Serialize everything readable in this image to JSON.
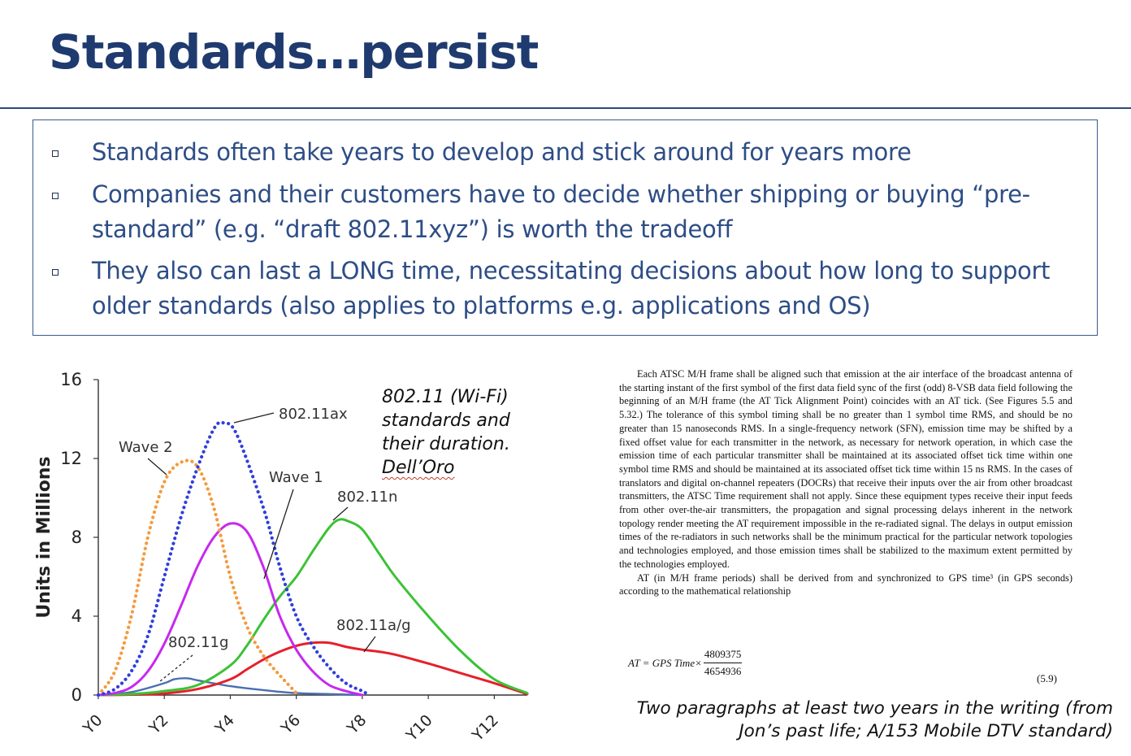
{
  "slide": {
    "title": "Standards…persist",
    "bullets": [
      "Standards often take years to develop and stick around for years more",
      "Companies and their customers have to decide whether shipping or buying “pre-standard” (e.g. “draft 802.11xyz”) is worth the tradeoff",
      "They also can last a LONG time, necessitating decisions about how long to support older standards (also applies to platforms e.g. applications and OS)"
    ],
    "colors": {
      "title": "#1f3a6e",
      "bullet_text": "#2d4d86",
      "box_border": "#3b5a8c"
    }
  },
  "caption": {
    "lines": [
      "802.11 (Wi-Fi)",
      "standards and",
      "their duration."
    ],
    "source": "Dell’Oro"
  },
  "document_excerpt": {
    "paragraphs": [
      "Each ATSC M/H frame shall be aligned such that emission at the air interface of the broadcast antenna of the starting instant of the first symbol of the first data field sync of the first (odd) 8-VSB data field following the beginning of an M/H frame (the AT Tick Alignment Point) coincides with an AT tick. (See Figures 5.5 and 5.32.) The tolerance of this symbol timing shall be no greater than 1 symbol time RMS, and should be no greater than 15 nanoseconds RMS. In a single-frequency network (SFN), emission time may be shifted by a fixed offset value for each transmitter in the network, as necessary for network operation, in which case the emission time of each particular transmitter shall be maintained at its associated offset tick time within one symbol time RMS and should be maintained at its associated offset tick time within 15 ns RMS. In the cases of translators and digital on-channel repeaters (DOCRs) that receive their inputs over the air from other broadcast transmitters, the ATSC Time requirement shall not apply. Since these equipment types receive their input feeds from other over-the-air transmitters, the propagation and signal processing delays inherent in the network topology render meeting the AT requirement impossible in the re-radiated signal. The delays in output emission times of the re-radiators in such networks shall be the minimum practical for the particular network topologies and technologies employed, and those emission times shall be stabilized to the maximum extent permitted by the technologies employed.",
      "AT (in M/H frame periods) shall be derived from and synchronized to GPS time³ (in GPS seconds) according to the mathematical relationship"
    ],
    "formula": {
      "lhs": "AT = GPS Time×",
      "numerator": "4809375",
      "denominator": "4654936"
    },
    "equation_number": "(5.9)"
  },
  "note": {
    "lines": [
      "Two paragraphs at least  two years in the writing (from",
      "Jon’s past life; A/153 Mobile DTV standard)"
    ]
  },
  "chart_data": {
    "type": "line",
    "title": "",
    "xlabel": "",
    "ylabel": "Units in Millions",
    "x_ticks": [
      "Y0",
      "Y2",
      "Y4",
      "Y6",
      "Y8",
      "Y10",
      "Y12"
    ],
    "x_tick_values": [
      0,
      2,
      4,
      6,
      8,
      10,
      12
    ],
    "y_ticks": [
      0,
      4,
      8,
      12,
      16
    ],
    "xlim": [
      0,
      13
    ],
    "ylim": [
      0,
      16
    ],
    "grid": false,
    "series": [
      {
        "name": "Wave 2",
        "color": "#f59a3c",
        "dash": "dotted",
        "points": [
          [
            0,
            0
          ],
          [
            0.5,
            1.2
          ],
          [
            1,
            4
          ],
          [
            1.5,
            8
          ],
          [
            2,
            10.8
          ],
          [
            2.5,
            11.8
          ],
          [
            3,
            11.6
          ],
          [
            3.5,
            9.5
          ],
          [
            4,
            6
          ],
          [
            4.5,
            3.5
          ],
          [
            5,
            2
          ],
          [
            5.5,
            1
          ],
          [
            6,
            0.1
          ]
        ]
      },
      {
        "name": "802.11ax",
        "color": "#2e3fdb",
        "dash": "dotted",
        "points": [
          [
            0,
            0
          ],
          [
            0.5,
            0.3
          ],
          [
            1,
            1.2
          ],
          [
            1.5,
            3
          ],
          [
            2,
            6
          ],
          [
            2.5,
            9
          ],
          [
            3,
            11.5
          ],
          [
            3.5,
            13.5
          ],
          [
            3.8,
            13.8
          ],
          [
            4.2,
            13.2
          ],
          [
            5,
            9.5
          ],
          [
            5.5,
            6.5
          ],
          [
            6,
            4
          ],
          [
            6.5,
            2.5
          ],
          [
            7,
            1.4
          ],
          [
            7.5,
            0.6
          ],
          [
            8,
            0.2
          ],
          [
            8.2,
            0
          ]
        ]
      },
      {
        "name": "Wave 1",
        "color": "#c728f0",
        "dash": "solid",
        "points": [
          [
            0,
            0
          ],
          [
            0.5,
            0.1
          ],
          [
            1,
            0.4
          ],
          [
            1.5,
            1.2
          ],
          [
            2,
            2.6
          ],
          [
            2.5,
            4.5
          ],
          [
            3,
            6.5
          ],
          [
            3.5,
            8
          ],
          [
            4,
            8.7
          ],
          [
            4.5,
            8.3
          ],
          [
            5,
            6.5
          ],
          [
            5.5,
            4
          ],
          [
            6,
            2.3
          ],
          [
            6.5,
            1.2
          ],
          [
            7,
            0.5
          ],
          [
            7.5,
            0.2
          ],
          [
            8,
            0
          ]
        ]
      },
      {
        "name": "802.11n",
        "color": "#3cc235",
        "dash": "solid",
        "points": [
          [
            0,
            0
          ],
          [
            1,
            0.05
          ],
          [
            2,
            0.2
          ],
          [
            3,
            0.5
          ],
          [
            4,
            1.5
          ],
          [
            4.5,
            2.5
          ],
          [
            5,
            3.8
          ],
          [
            5.5,
            5
          ],
          [
            6,
            6
          ],
          [
            6.5,
            7.3
          ],
          [
            7,
            8.5
          ],
          [
            7.3,
            8.9
          ],
          [
            7.6,
            8.8
          ],
          [
            8,
            8.4
          ],
          [
            8.5,
            7.2
          ],
          [
            9,
            6
          ],
          [
            10,
            4
          ],
          [
            11,
            2.2
          ],
          [
            12,
            0.8
          ],
          [
            13,
            0.1
          ]
        ]
      },
      {
        "name": "802.11a/g",
        "color": "#e5202a",
        "dash": "solid",
        "points": [
          [
            0,
            0
          ],
          [
            1,
            0.02
          ],
          [
            2,
            0.08
          ],
          [
            3,
            0.3
          ],
          [
            4,
            0.8
          ],
          [
            4.5,
            1.3
          ],
          [
            5,
            1.8
          ],
          [
            5.5,
            2.2
          ],
          [
            6,
            2.5
          ],
          [
            6.5,
            2.65
          ],
          [
            7,
            2.65
          ],
          [
            7.5,
            2.45
          ],
          [
            8,
            2.3
          ],
          [
            8.5,
            2.2
          ],
          [
            9,
            2.05
          ],
          [
            10,
            1.6
          ],
          [
            11,
            1.1
          ],
          [
            12,
            0.6
          ],
          [
            13,
            0.05
          ]
        ]
      },
      {
        "name": "802.11g",
        "color": "#4a6fb0",
        "dash": "solid",
        "points": [
          [
            0,
            0
          ],
          [
            1,
            0.15
          ],
          [
            2,
            0.6
          ],
          [
            2.3,
            0.8
          ],
          [
            2.7,
            0.85
          ],
          [
            3,
            0.75
          ],
          [
            4,
            0.45
          ],
          [
            5,
            0.25
          ],
          [
            6,
            0.1
          ],
          [
            7,
            0.05
          ],
          [
            8,
            0
          ]
        ]
      }
    ],
    "annotations": [
      {
        "text": "Wave 2",
        "series": "Wave 2"
      },
      {
        "text": "802.11ax",
        "series": "802.11ax"
      },
      {
        "text": "Wave 1",
        "series": "Wave 1"
      },
      {
        "text": "802.11n",
        "series": "802.11n"
      },
      {
        "text": "802.11a/g",
        "series": "802.11a/g"
      },
      {
        "text": "802.11g",
        "series": "802.11g"
      }
    ]
  }
}
